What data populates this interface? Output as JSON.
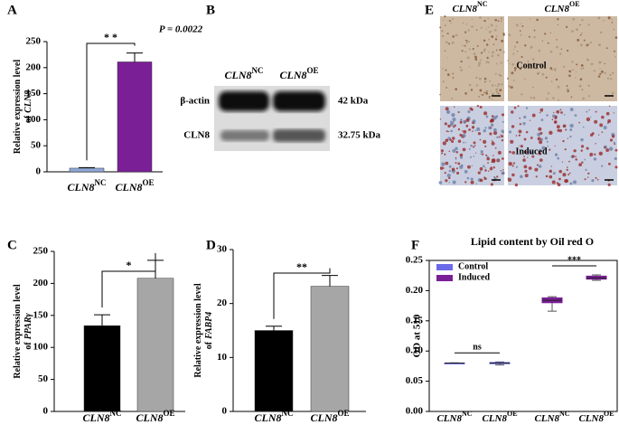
{
  "panels": [
    "A",
    "B",
    "C",
    "D",
    "E",
    "F"
  ],
  "chart_data": [
    {
      "type": "bar",
      "categories": [
        [
          "CLN8",
          "NC"
        ],
        [
          "CLN8",
          "OE"
        ]
      ],
      "values": [
        7,
        211
      ],
      "errors": [
        1,
        17
      ],
      "colors": [
        "#8fa8d8",
        "#7b1f96"
      ],
      "ylim": [
        0,
        250
      ],
      "yticks": [
        0,
        50,
        100,
        150,
        200,
        250
      ],
      "y_label": [
        "Relative expression level",
        "of",
        "CLN8"
      ],
      "significance": "* *",
      "annotation": "P = 0.0022"
    },
    {
      "type": "bar",
      "categories": [
        [
          "CLN8",
          "NC"
        ],
        [
          "CLN8",
          "OE"
        ]
      ],
      "values": [
        134,
        208
      ],
      "errors": [
        17,
        28
      ],
      "colors": [
        "#000000",
        "#a6a6a6"
      ],
      "ylim": [
        0,
        250
      ],
      "yticks": [
        0,
        50,
        100,
        150,
        200,
        250
      ],
      "y_label": [
        "Relative expression level",
        "of",
        "PPARγ"
      ],
      "significance": "*"
    },
    {
      "type": "bar",
      "categories": [
        [
          "CLN8",
          "NC"
        ],
        [
          "CLN8",
          "OE"
        ]
      ],
      "values": [
        15,
        23.2
      ],
      "errors": [
        0.8,
        2
      ],
      "colors": [
        "#000000",
        "#a6a6a6"
      ],
      "ylim": [
        0,
        30
      ],
      "yticks": [
        0,
        10,
        20,
        30
      ],
      "y_label": [
        "Relative expression level",
        "of",
        "FABP4"
      ],
      "significance": "**"
    },
    {
      "type": "box",
      "title": "Lipid content by Oil red O",
      "y_label": "OD at 510",
      "categories": [
        [
          "CLN8",
          "NC"
        ],
        [
          "CLN8",
          "OE"
        ],
        [
          "CLN8",
          "NC"
        ],
        [
          "CLN8",
          "OE"
        ]
      ],
      "ylim": [
        0,
        0.25
      ],
      "yticks": [
        {
          "value": 0,
          "label": "0.00"
        },
        {
          "value": 0.05,
          "label": "0.05"
        },
        {
          "value": 0.1,
          "label": "0.10"
        },
        {
          "value": 0.15,
          "label": "0.15"
        },
        {
          "value": 0.2,
          "label": "0.20"
        },
        {
          "value": 0.25,
          "label": "0.25"
        }
      ],
      "series": [
        {
          "name": "Control",
          "color": "#6b6bea",
          "boxes": [
            {
              "min": 0.0795,
              "q1": 0.0798,
              "median": 0.08,
              "q3": 0.0802,
              "max": 0.0805
            },
            {
              "min": 0.077,
              "q1": 0.079,
              "median": 0.08,
              "q3": 0.081,
              "max": 0.082
            },
            null,
            null
          ]
        },
        {
          "name": "Induced",
          "color": "#7b1f96",
          "boxes": [
            null,
            null,
            {
              "min": 0.166,
              "q1": 0.18,
              "median": 0.184,
              "q3": 0.188,
              "max": 0.19
            },
            {
              "min": 0.217,
              "q1": 0.219,
              "median": 0.221,
              "q3": 0.224,
              "max": 0.226
            }
          ]
        }
      ],
      "significance": [
        "ns",
        "***"
      ],
      "legend": "upper left"
    }
  ],
  "blot": {
    "columns": [
      [
        "CLN8",
        "NC"
      ],
      [
        "CLN8",
        "OE"
      ]
    ],
    "rows": [
      {
        "name": "β-actin",
        "size": "42 kDa"
      },
      {
        "name": "CLN8",
        "size": "32.75 kDa"
      }
    ]
  },
  "staining": {
    "columns": [
      [
        "CLN8",
        "NC"
      ],
      [
        "CLN8",
        "OE"
      ]
    ],
    "rows": [
      "Control",
      "Induced"
    ]
  }
}
